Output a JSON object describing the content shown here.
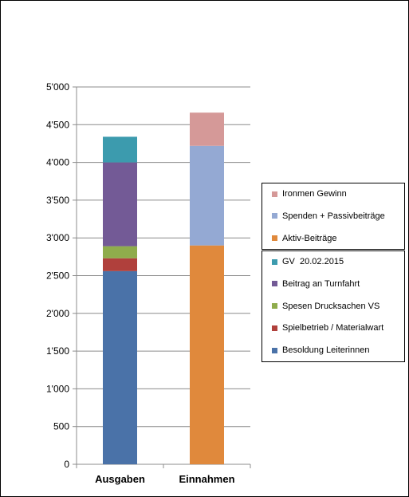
{
  "chart_data": {
    "type": "bar",
    "stacked": true,
    "categories": [
      "Ausgaben",
      "Einnahmen"
    ],
    "ylim": [
      0,
      5000
    ],
    "yticks": [
      0,
      500,
      1000,
      1500,
      2000,
      2500,
      3000,
      3500,
      4000,
      4500,
      5000
    ],
    "ytick_labels": [
      "0",
      "500",
      "1'000",
      "1'500",
      "2'000",
      "2'500",
      "3'000",
      "3'500",
      "4'000",
      "4'500",
      "5'000"
    ],
    "grid": true,
    "legend_placement": "right",
    "series": [
      {
        "name": "Besoldung Leiterinnen",
        "color": "#4a72a8",
        "values": [
          2560,
          0
        ]
      },
      {
        "name": "Spielbetrieb / Materialwart",
        "color": "#b0403c",
        "values": [
          170,
          0
        ]
      },
      {
        "name": "Spesen Drucksachen VS",
        "color": "#8fac4c",
        "values": [
          160,
          0
        ]
      },
      {
        "name": "Beitrag an Turnfahrt",
        "color": "#735a96",
        "values": [
          1110,
          0
        ]
      },
      {
        "name": "GV  20.02.2015",
        "color": "#3c9bae",
        "values": [
          340,
          0
        ]
      },
      {
        "name": "Aktiv-Beiträge",
        "color": "#e0893c",
        "values": [
          0,
          2900
        ]
      },
      {
        "name": "Spenden + Passivbeiträge",
        "color": "#94a9d3",
        "values": [
          0,
          1320
        ]
      },
      {
        "name": "Ironmen Gewinn",
        "color": "#d59998",
        "values": [
          0,
          440
        ]
      }
    ],
    "legend_groups": [
      [
        "Ironmen Gewinn",
        "Spenden + Passivbeiträge",
        "Aktiv-Beiträge"
      ],
      [
        "GV  20.02.2015",
        "Beitrag an Turnfahrt",
        "Spesen Drucksachen VS",
        "Spielbetrieb / Materialwart",
        "Besoldung Leiterinnen"
      ]
    ]
  }
}
